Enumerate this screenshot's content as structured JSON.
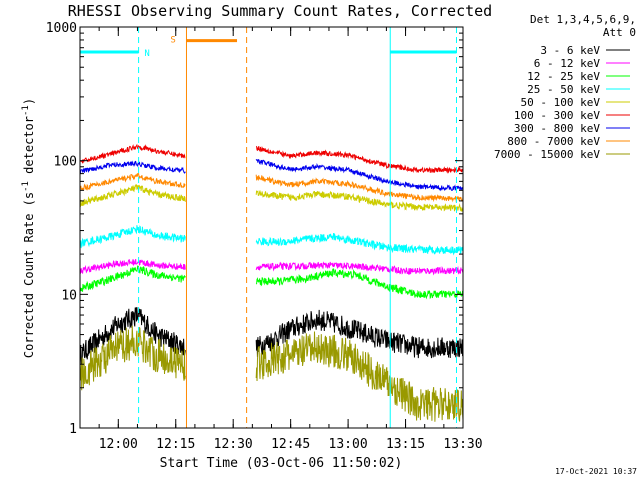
{
  "chart_data": {
    "type": "line",
    "title": "RHESSI Observing Summary Count Rates, Corrected",
    "xlabel": "Start Time (03-Oct-06 11:50:02)",
    "ylabel": "Corrected Count Rate (s-1 detector-1)",
    "ylabel_parts": {
      "pre": "Corrected Count Rate (s",
      "exp1": "-1",
      "mid": " detector",
      "exp2": "-1",
      "post": ")"
    },
    "x_unit": "minutes after 11:50:02",
    "xlim": [
      0,
      100
    ],
    "ylim": [
      1,
      1000
    ],
    "y_scale": "log",
    "x_ticks": [
      {
        "value": 10,
        "label": "12:00"
      },
      {
        "value": 25,
        "label": "12:15"
      },
      {
        "value": 40,
        "label": "12:30"
      },
      {
        "value": 55,
        "label": "12:45"
      },
      {
        "value": 70,
        "label": "13:00"
      },
      {
        "value": 85,
        "label": "13:15"
      },
      {
        "value": 100,
        "label": "13:30"
      }
    ],
    "y_ticks": [
      {
        "value": 1,
        "label": "1"
      },
      {
        "value": 10,
        "label": "10"
      },
      {
        "value": 100,
        "label": "100"
      },
      {
        "value": 1000,
        "label": "1000"
      }
    ],
    "legend": {
      "placement": "right",
      "header": [
        "Det 1,3,4,5,6,9,",
        "Att 0"
      ]
    },
    "gaps": [
      [
        27.5,
        46
      ]
    ],
    "series": [
      {
        "name": "3 - 6 keV",
        "color": "#000000",
        "left": [
          [
            0,
            3.5
          ],
          [
            10,
            6.0
          ],
          [
            15,
            7.0
          ],
          [
            20,
            5.0
          ],
          [
            27.5,
            4.0
          ]
        ],
        "right": [
          [
            46,
            4.0
          ],
          [
            50,
            4.5
          ],
          [
            55,
            5.5
          ],
          [
            62,
            6.5
          ],
          [
            67,
            6.0
          ],
          [
            80,
            4.5
          ],
          [
            88,
            4.0
          ],
          [
            100,
            4.0
          ]
        ],
        "noise": 0.08
      },
      {
        "name": "6 - 12 keV",
        "color": "#ff00ff",
        "left": [
          [
            0,
            15.0
          ],
          [
            10,
            17.0
          ],
          [
            15,
            17.5
          ],
          [
            20,
            16.5
          ],
          [
            27.5,
            16.0
          ]
        ],
        "right": [
          [
            46,
            16.0
          ],
          [
            55,
            16.2
          ],
          [
            65,
            16.5
          ],
          [
            75,
            16.0
          ],
          [
            85,
            15.0
          ],
          [
            100,
            15.0
          ]
        ],
        "noise": 0.025
      },
      {
        "name": "12 - 25 keV",
        "color": "#00ff00",
        "left": [
          [
            0,
            11.0
          ],
          [
            8,
            13.0
          ],
          [
            15,
            15.5
          ],
          [
            20,
            14.0
          ],
          [
            27.5,
            13.0
          ]
        ],
        "right": [
          [
            46,
            12.5
          ],
          [
            52,
            12.5
          ],
          [
            58,
            13.0
          ],
          [
            66,
            14.5
          ],
          [
            72,
            14.0
          ],
          [
            80,
            11.5
          ],
          [
            88,
            10.0
          ],
          [
            100,
            10.0
          ]
        ],
        "noise": 0.03
      },
      {
        "name": "25 - 50 keV",
        "color": "#00ffff",
        "left": [
          [
            0,
            24.0
          ],
          [
            8,
            27.0
          ],
          [
            15,
            31.0
          ],
          [
            20,
            27.5
          ],
          [
            27.5,
            26.0
          ]
        ],
        "right": [
          [
            46,
            25.0
          ],
          [
            52,
            24.5
          ],
          [
            60,
            26.0
          ],
          [
            66,
            27.0
          ],
          [
            72,
            25.0
          ],
          [
            80,
            22.5
          ],
          [
            88,
            21.5
          ],
          [
            100,
            21.5
          ]
        ],
        "noise": 0.03
      },
      {
        "name": "50 - 100 keV",
        "color": "#cccc00",
        "left": [
          [
            0,
            48.0
          ],
          [
            8,
            55.0
          ],
          [
            15,
            63.0
          ],
          [
            20,
            56.0
          ],
          [
            27.5,
            52.0
          ]
        ],
        "right": [
          [
            46,
            57.0
          ],
          [
            55,
            53.0
          ],
          [
            62,
            56.0
          ],
          [
            70,
            54.0
          ],
          [
            80,
            47.0
          ],
          [
            88,
            45.0
          ],
          [
            100,
            44.0
          ]
        ],
        "noise": 0.025
      },
      {
        "name": "100 - 300 keV",
        "color": "#ee0000",
        "left": [
          [
            0,
            98.0
          ],
          [
            8,
            112.0
          ],
          [
            15,
            128.0
          ],
          [
            20,
            118.0
          ],
          [
            27.5,
            108.0
          ]
        ],
        "right": [
          [
            46,
            125.0
          ],
          [
            55,
            108.0
          ],
          [
            62,
            115.0
          ],
          [
            70,
            110.0
          ],
          [
            80,
            92.0
          ],
          [
            88,
            85.0
          ],
          [
            100,
            85.0
          ]
        ],
        "noise": 0.018
      },
      {
        "name": "300 - 800 keV",
        "color": "#0000ee",
        "left": [
          [
            0,
            83.0
          ],
          [
            8,
            93.0
          ],
          [
            15,
            95.0
          ],
          [
            20,
            88.0
          ],
          [
            27.5,
            84.0
          ]
        ],
        "right": [
          [
            46,
            100.0
          ],
          [
            55,
            86.0
          ],
          [
            62,
            90.0
          ],
          [
            70,
            85.0
          ],
          [
            80,
            70.0
          ],
          [
            88,
            64.0
          ],
          [
            100,
            62.0
          ]
        ],
        "noise": 0.018
      },
      {
        "name": "800 - 7000 keV",
        "color": "#ff8800",
        "left": [
          [
            0,
            62.0
          ],
          [
            8,
            70.0
          ],
          [
            15,
            77.0
          ],
          [
            20,
            70.0
          ],
          [
            27.5,
            65.0
          ]
        ],
        "right": [
          [
            46,
            75.0
          ],
          [
            55,
            66.0
          ],
          [
            62,
            70.0
          ],
          [
            70,
            67.0
          ],
          [
            80,
            57.0
          ],
          [
            88,
            53.0
          ],
          [
            100,
            52.0
          ]
        ],
        "noise": 0.02
      },
      {
        "name": "7000 - 15000 keV",
        "color": "#999900",
        "left": [
          [
            0,
            2.5
          ],
          [
            10,
            4.0
          ],
          [
            15,
            4.5
          ],
          [
            20,
            3.5
          ],
          [
            27.5,
            3.0
          ]
        ],
        "right": [
          [
            46,
            3.0
          ],
          [
            55,
            3.5
          ],
          [
            62,
            4.0
          ],
          [
            70,
            3.5
          ],
          [
            80,
            2.2
          ],
          [
            88,
            1.5
          ],
          [
            100,
            1.5
          ]
        ],
        "noise": 0.13
      }
    ],
    "intervals": [
      {
        "label": "N",
        "color": "#00ffff",
        "start": 0,
        "end": 15.3,
        "bar_y": 650,
        "bar_end": 15.3,
        "label_x": 17.5,
        "label_y": 650,
        "dash_start": false,
        "dash_end": true
      },
      {
        "label": "S",
        "color": "#ff8800",
        "start": 27.8,
        "end": 43.5,
        "bar_y": 790,
        "bar_end": 41.0,
        "label_x": 24.3,
        "label_y": 820,
        "dash_start": false,
        "dash_end": true
      },
      {
        "label": "",
        "color": "#00ffff",
        "start": 81.0,
        "end": 98.3,
        "bar_y": 650,
        "bar_end": 98.3,
        "label_x": 0,
        "label_y": 0,
        "dash_start": false,
        "dash_end": true
      }
    ],
    "timestamp": "17-Oct-2021 10:37"
  }
}
